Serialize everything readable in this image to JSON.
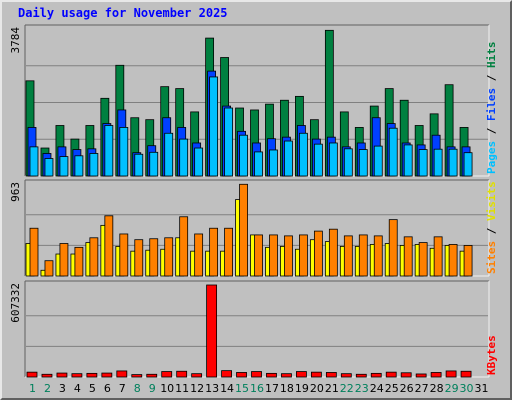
{
  "title": "Daily usage for November 2025",
  "colors": {
    "hits": "#008040",
    "files": "#0040ff",
    "pages": "#00c0ff",
    "visits": "#ffff00",
    "sites": "#ff8000",
    "kbytes": "#ff0000",
    "weekend_label": "#00805c",
    "weekday_label": "#000000",
    "legend_slash": "#000000",
    "legend_sites_text": "#ff8000",
    "legend_visits_text": "#e0e000",
    "legend_kbytes_text": "#ff0000",
    "legend_pages_text": "#00c0ff",
    "legend_files_text": "#0040ff",
    "legend_hits_text": "#008040"
  },
  "chart_data": [
    {
      "type": "bar",
      "panel": "hits-files-pages",
      "ymax_label": "3784",
      "ylim": [
        0,
        3784
      ],
      "legend": [
        "Pages",
        "Files",
        "Hits"
      ],
      "legend_placement": "right",
      "categories": [
        "1",
        "2",
        "3",
        "4",
        "5",
        "6",
        "7",
        "8",
        "9",
        "10",
        "11",
        "12",
        "13",
        "14",
        "15",
        "16",
        "17",
        "18",
        "19",
        "20",
        "21",
        "22",
        "23",
        "24",
        "25",
        "26",
        "27",
        "28",
        "29",
        "30",
        "31"
      ],
      "series": [
        {
          "name": "Hits",
          "values": [
            2450,
            720,
            1300,
            950,
            1300,
            2000,
            2850,
            1500,
            1450,
            2300,
            2250,
            1650,
            3550,
            3050,
            1750,
            1700,
            1850,
            1950,
            2050,
            1450,
            3750,
            1650,
            1250,
            1800,
            2250,
            1950,
            1300,
            1600,
            2350,
            1250,
            0
          ]
        },
        {
          "name": "Files",
          "values": [
            1250,
            580,
            750,
            680,
            700,
            1350,
            1700,
            600,
            780,
            1500,
            1250,
            850,
            2700,
            1800,
            1150,
            850,
            960,
            1000,
            1300,
            950,
            1000,
            750,
            850,
            1500,
            1350,
            850,
            800,
            1050,
            750,
            750,
            0
          ]
        },
        {
          "name": "Pages",
          "values": [
            750,
            450,
            500,
            520,
            580,
            1300,
            1250,
            560,
            610,
            1100,
            950,
            720,
            2550,
            1750,
            1050,
            620,
            670,
            900,
            1100,
            820,
            850,
            700,
            680,
            770,
            1230,
            800,
            680,
            690,
            690,
            600,
            0
          ]
        }
      ]
    },
    {
      "type": "bar",
      "panel": "sites-visits",
      "ymax_label": "963",
      "ylim": [
        0,
        963
      ],
      "legend": [
        "Sites",
        "Visits"
      ],
      "legend_placement": "right",
      "categories": [
        "1",
        "2",
        "3",
        "4",
        "5",
        "6",
        "7",
        "8",
        "9",
        "10",
        "11",
        "12",
        "13",
        "14",
        "15",
        "16",
        "17",
        "18",
        "19",
        "20",
        "21",
        "22",
        "23",
        "24",
        "25",
        "26",
        "27",
        "28",
        "29",
        "30",
        "31"
      ],
      "series": [
        {
          "name": "Visits",
          "values": [
            340,
            60,
            230,
            230,
            350,
            530,
            310,
            260,
            270,
            280,
            400,
            260,
            260,
            260,
            800,
            430,
            300,
            310,
            280,
            380,
            360,
            310,
            310,
            330,
            340,
            320,
            330,
            290,
            320,
            260,
            0
          ]
        },
        {
          "name": "Sites",
          "values": [
            500,
            160,
            340,
            300,
            400,
            630,
            440,
            380,
            390,
            400,
            620,
            440,
            500,
            500,
            960,
            430,
            430,
            420,
            430,
            470,
            490,
            420,
            430,
            420,
            590,
            410,
            350,
            410,
            330,
            320,
            0
          ]
        }
      ]
    },
    {
      "type": "bar",
      "panel": "kbytes",
      "ymax_label": "607332",
      "ylim": [
        0,
        607332
      ],
      "legend": [
        "KBytes"
      ],
      "legend_placement": "right",
      "categories": [
        "1",
        "2",
        "3",
        "4",
        "5",
        "6",
        "7",
        "8",
        "9",
        "10",
        "11",
        "12",
        "13",
        "14",
        "15",
        "16",
        "17",
        "18",
        "19",
        "20",
        "21",
        "22",
        "23",
        "24",
        "25",
        "26",
        "27",
        "28",
        "29",
        "30",
        "31"
      ],
      "series": [
        {
          "name": "KBytes",
          "values": [
            32000,
            18000,
            26000,
            22000,
            24000,
            26000,
            40000,
            16000,
            18000,
            36000,
            38000,
            22000,
            607332,
            42000,
            30000,
            36000,
            24000,
            22000,
            36000,
            32000,
            30000,
            22000,
            18000,
            24000,
            32000,
            28000,
            20000,
            30000,
            40000,
            38000,
            0
          ]
        }
      ]
    }
  ],
  "weekend_days": [
    1,
    2,
    8,
    9,
    15,
    16,
    22,
    23,
    29,
    30
  ]
}
